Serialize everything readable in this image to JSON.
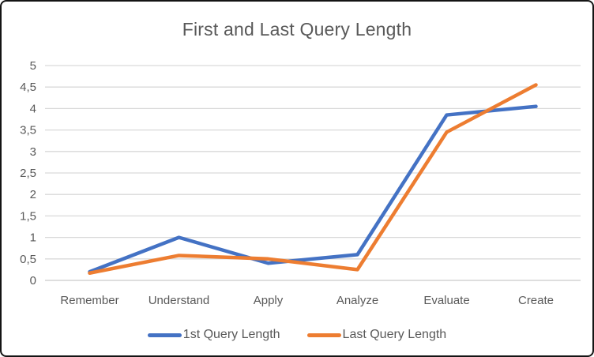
{
  "chart_data": {
    "type": "line",
    "title": "First and Last Query Length",
    "categories": [
      "Remember",
      "Understand",
      "Apply",
      "Analyze",
      "Evaluate",
      "Create"
    ],
    "series": [
      {
        "name": "1st Query Length",
        "color": "#4472C4",
        "values": [
          0.2,
          1.0,
          0.4,
          0.6,
          3.85,
          4.05
        ]
      },
      {
        "name": "Last Query Length",
        "color": "#ED7D31",
        "values": [
          0.17,
          0.58,
          0.5,
          0.25,
          3.45,
          4.55
        ]
      }
    ],
    "xlabel": "",
    "ylabel": "",
    "ylim": [
      0,
      5
    ],
    "ytick_step": 0.5,
    "ytick_labels": [
      "0",
      "0,5",
      "1",
      "1,5",
      "2",
      "2,5",
      "3",
      "3,5",
      "4",
      "4,5",
      "5"
    ],
    "decimal_separator": ",",
    "grid": true,
    "legend_position": "bottom",
    "colors": {
      "gridline": "#D9D9D9",
      "axis_line": "#C9C9C9",
      "text": "#595959",
      "background": "#FFFFFF",
      "frame_border": "#141414"
    }
  }
}
